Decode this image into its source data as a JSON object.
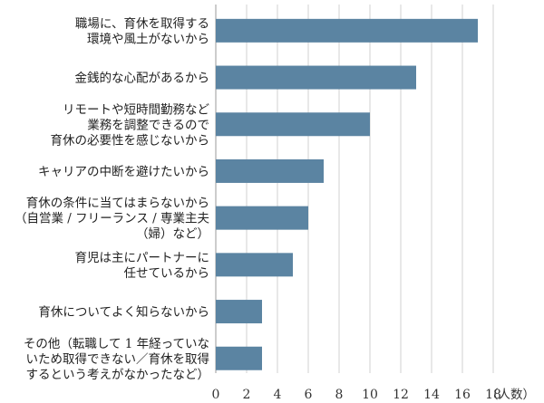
{
  "chart_data": {
    "type": "bar",
    "orientation": "horizontal",
    "categories": [
      [
        "職場に、育休を取得する",
        "環境や風土がないから"
      ],
      [
        "金銭的な心配があるから"
      ],
      [
        "リモートや短時間勤務など",
        "業務を調整できるので",
        "育休の必要性を感じないから"
      ],
      [
        "キャリアの中断を避けたいから"
      ],
      [
        "育休の条件に当てはまらないから",
        "（自営業 / フリーランス / 専業主夫",
        "（婦）など）"
      ],
      [
        "育児は主にパートナーに",
        "任せているから"
      ],
      [
        "育休についてよく知らないから"
      ],
      [
        "その他（転職して 1 年経っていな",
        "いため取得できない／育休を取得",
        "するという考えがなかったなど）"
      ]
    ],
    "values": [
      17,
      13,
      10,
      7,
      6,
      5,
      3,
      3
    ],
    "xlim": [
      0,
      18
    ],
    "xticks": [
      0,
      2,
      4,
      6,
      8,
      10,
      12,
      14,
      16,
      18
    ],
    "xlabel": "（人数）",
    "bar_color": "#5b84a2",
    "grid": true
  }
}
